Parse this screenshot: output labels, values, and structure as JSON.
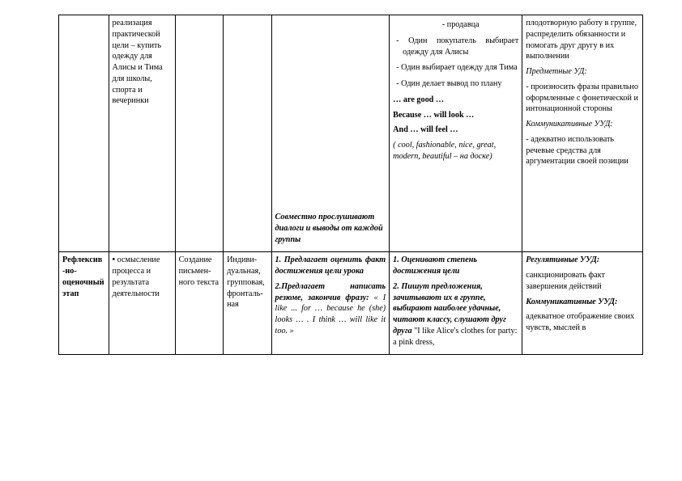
{
  "row1": {
    "c2": "реализация практической цели – купить одежду для Алисы и Тима для школы, спорта и вечеринки",
    "c5_italic": "Совместно прослушивают диалоги и выводы от каждой группы",
    "c6_li0": "продавца",
    "c6_li1": "Один покупатель выбирает одежду для Алисы",
    "c6_li2": "Один выбирает одежду для Тима",
    "c6_li3": "Один делает вывод по плану",
    "c6_good": "… are good …",
    "c6_because": "Because … will look …",
    "c6_and": "And … will feel …",
    "c6_words": "( cool, fashionable, nice, great, modern, beautiful – на доске)",
    "c7_p1": "плодотворную работу в группе, распределить обязанности и помогать друг другу в их выполнении",
    "c7_h1": "Предметные УД:",
    "c7_p2": "- произносить фразы правильно оформленные с фонетической и интонационной стороны",
    "c7_h2": "Коммуникативные УУД:",
    "c7_p3": "- адекватно использовать речевые средства для аргументации своей позиции"
  },
  "row2": {
    "c1": "Рефлексив-но-оценочный этап",
    "c2": "осмысление процесса и результата деятельности",
    "c3": "Создание письмен-ного текста",
    "c4": "Индиви-дуальная, групповая, фронталь-ная",
    "c5_p1": "1. Предлагает оценить факт достижения цели урока",
    "c5_p2a": "2.Предлагает написать резюме, закончив фразу: ",
    "c5_p2b": "« I like ... for … because he (she) looks … . I think … will like it too. »",
    "c6_p1": "1. Оценивают степень достижения цели",
    "c6_p2a": "2. Пишут предложения, зачитывают их в группе, выбирают наиболее удачные, читают классу, слушают друг друга ",
    "c6_p2b": "\"I like Alice's clothes for party: a pink dress,",
    "c7_h1": "Регулятивные УУД:",
    "c7_p1": "санкционировать факт завершения действий",
    "c7_h2": "Коммуникативные УУД:",
    "c7_p2": "адекватное отображение своих чувств, мыслей в"
  }
}
